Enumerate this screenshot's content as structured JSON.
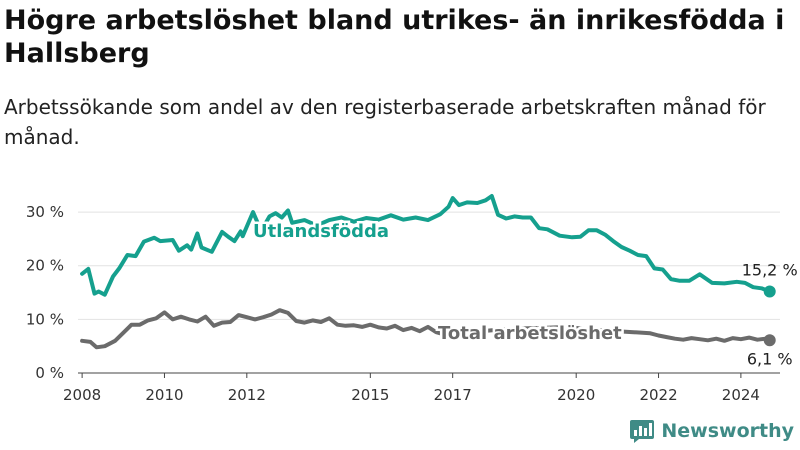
{
  "title": "Högre arbetslöshet bland utrikes- än inrikesfödda i Hallsberg",
  "subtitle": "Arbetssökande som andel av den registerbaserade arbetskraften månad för månad.",
  "brand": {
    "name": "Newsworthy",
    "color": "#3f8b86"
  },
  "chart_data": {
    "type": "line",
    "ylim": [
      0,
      33
    ],
    "xlim": [
      2007.9,
      2024.95
    ],
    "yticks": [
      0,
      10,
      20,
      30
    ],
    "ytick_labels": [
      "0 %",
      "10 %",
      "20 %",
      "30 %"
    ],
    "xticks": [
      2008,
      2010,
      2012,
      2015,
      2017,
      2020,
      2022,
      2024
    ],
    "xtick_labels": [
      "2008",
      "2010",
      "2012",
      "2015",
      "2017",
      "2020",
      "2022",
      "2024"
    ],
    "grid": true,
    "series": [
      {
        "name": "Utlandsfödda",
        "color": "#15a08e",
        "end_label": "15,2 %",
        "x": [
          2008.0,
          2008.15,
          2008.3,
          2008.4,
          2008.55,
          2008.75,
          2008.9,
          2009.1,
          2009.3,
          2009.5,
          2009.75,
          2009.9,
          2010.2,
          2010.35,
          2010.55,
          2010.65,
          2010.8,
          2010.9,
          2011.15,
          2011.4,
          2011.55,
          2011.7,
          2011.85,
          2011.9,
          2012.15,
          2012.35,
          2012.55,
          2012.7,
          2012.85,
          2013.0,
          2013.1,
          2013.4,
          2013.7,
          2014.0,
          2014.3,
          2014.6,
          2014.9,
          2015.2,
          2015.5,
          2015.8,
          2016.1,
          2016.4,
          2016.7,
          2016.9,
          2017.0,
          2017.15,
          2017.35,
          2017.6,
          2017.8,
          2017.95,
          2018.1,
          2018.3,
          2018.5,
          2018.7,
          2018.9,
          2019.1,
          2019.3,
          2019.6,
          2019.9,
          2020.1,
          2020.3,
          2020.5,
          2020.7,
          2020.9,
          2021.1,
          2021.3,
          2021.5,
          2021.7,
          2021.9,
          2022.1,
          2022.3,
          2022.5,
          2022.75,
          2023.0,
          2023.3,
          2023.6,
          2023.9,
          2024.1,
          2024.3,
          2024.5,
          2024.7
        ],
        "values": [
          18.5,
          19.4,
          14.8,
          15.2,
          14.6,
          18.0,
          19.5,
          22.0,
          21.8,
          24.5,
          25.2,
          24.6,
          24.8,
          22.8,
          23.8,
          23.0,
          26.0,
          23.4,
          22.6,
          26.3,
          25.4,
          24.6,
          26.4,
          25.5,
          30.0,
          26.5,
          29.2,
          29.8,
          29.0,
          30.3,
          28.0,
          28.5,
          27.5,
          28.5,
          29.0,
          28.2,
          28.9,
          28.6,
          29.4,
          28.6,
          29.0,
          28.5,
          29.6,
          31.0,
          32.6,
          31.3,
          31.8,
          31.7,
          32.2,
          33.0,
          29.5,
          28.8,
          29.2,
          29.0,
          29.0,
          27.0,
          26.8,
          25.6,
          25.3,
          25.4,
          26.6,
          26.6,
          25.8,
          24.6,
          23.5,
          22.8,
          22.0,
          21.8,
          19.5,
          19.3,
          17.5,
          17.2,
          17.2,
          18.4,
          16.8,
          16.7,
          17.0,
          16.8,
          16.0,
          15.8,
          15.2
        ]
      },
      {
        "name": "Total arbetslöshet",
        "color": "#6b6b6b",
        "end_label": "6,1 %",
        "x": [
          2008.0,
          2008.2,
          2008.35,
          2008.55,
          2008.8,
          2009.0,
          2009.2,
          2009.4,
          2009.6,
          2009.8,
          2010.0,
          2010.2,
          2010.4,
          2010.6,
          2010.8,
          2011.0,
          2011.2,
          2011.4,
          2011.6,
          2011.8,
          2012.0,
          2012.2,
          2012.4,
          2012.6,
          2012.8,
          2013.0,
          2013.2,
          2013.4,
          2013.6,
          2013.8,
          2014.0,
          2014.2,
          2014.4,
          2014.6,
          2014.8,
          2015.0,
          2015.2,
          2015.4,
          2015.6,
          2015.8,
          2016.0,
          2016.2,
          2016.4,
          2016.6,
          2016.8,
          2017.0,
          2017.4,
          2018.0,
          2018.6,
          2019.2,
          2019.8,
          2020.2,
          2020.6,
          2021.0,
          2021.4,
          2021.8,
          2022.0,
          2022.2,
          2022.4,
          2022.6,
          2022.8,
          2023.0,
          2023.2,
          2023.4,
          2023.6,
          2023.8,
          2024.0,
          2024.2,
          2024.4,
          2024.6,
          2024.7
        ],
        "values": [
          6.0,
          5.8,
          4.8,
          5.0,
          6.0,
          7.5,
          9.0,
          9.0,
          9.8,
          10.2,
          11.3,
          10.0,
          10.5,
          10.0,
          9.6,
          10.5,
          8.8,
          9.4,
          9.5,
          10.8,
          10.4,
          10.0,
          10.4,
          10.9,
          11.7,
          11.2,
          9.7,
          9.4,
          9.8,
          9.5,
          10.2,
          9.0,
          8.8,
          8.9,
          8.6,
          9.0,
          8.5,
          8.3,
          8.8,
          8.0,
          8.4,
          7.8,
          8.6,
          7.6,
          7.2,
          7.3,
          7.6,
          8.0,
          8.3,
          8.4,
          8.6,
          8.2,
          8.0,
          7.8,
          7.6,
          7.4,
          7.0,
          6.7,
          6.4,
          6.2,
          6.5,
          6.3,
          6.1,
          6.4,
          6.0,
          6.5,
          6.3,
          6.6,
          6.2,
          6.4,
          6.1
        ]
      }
    ]
  }
}
